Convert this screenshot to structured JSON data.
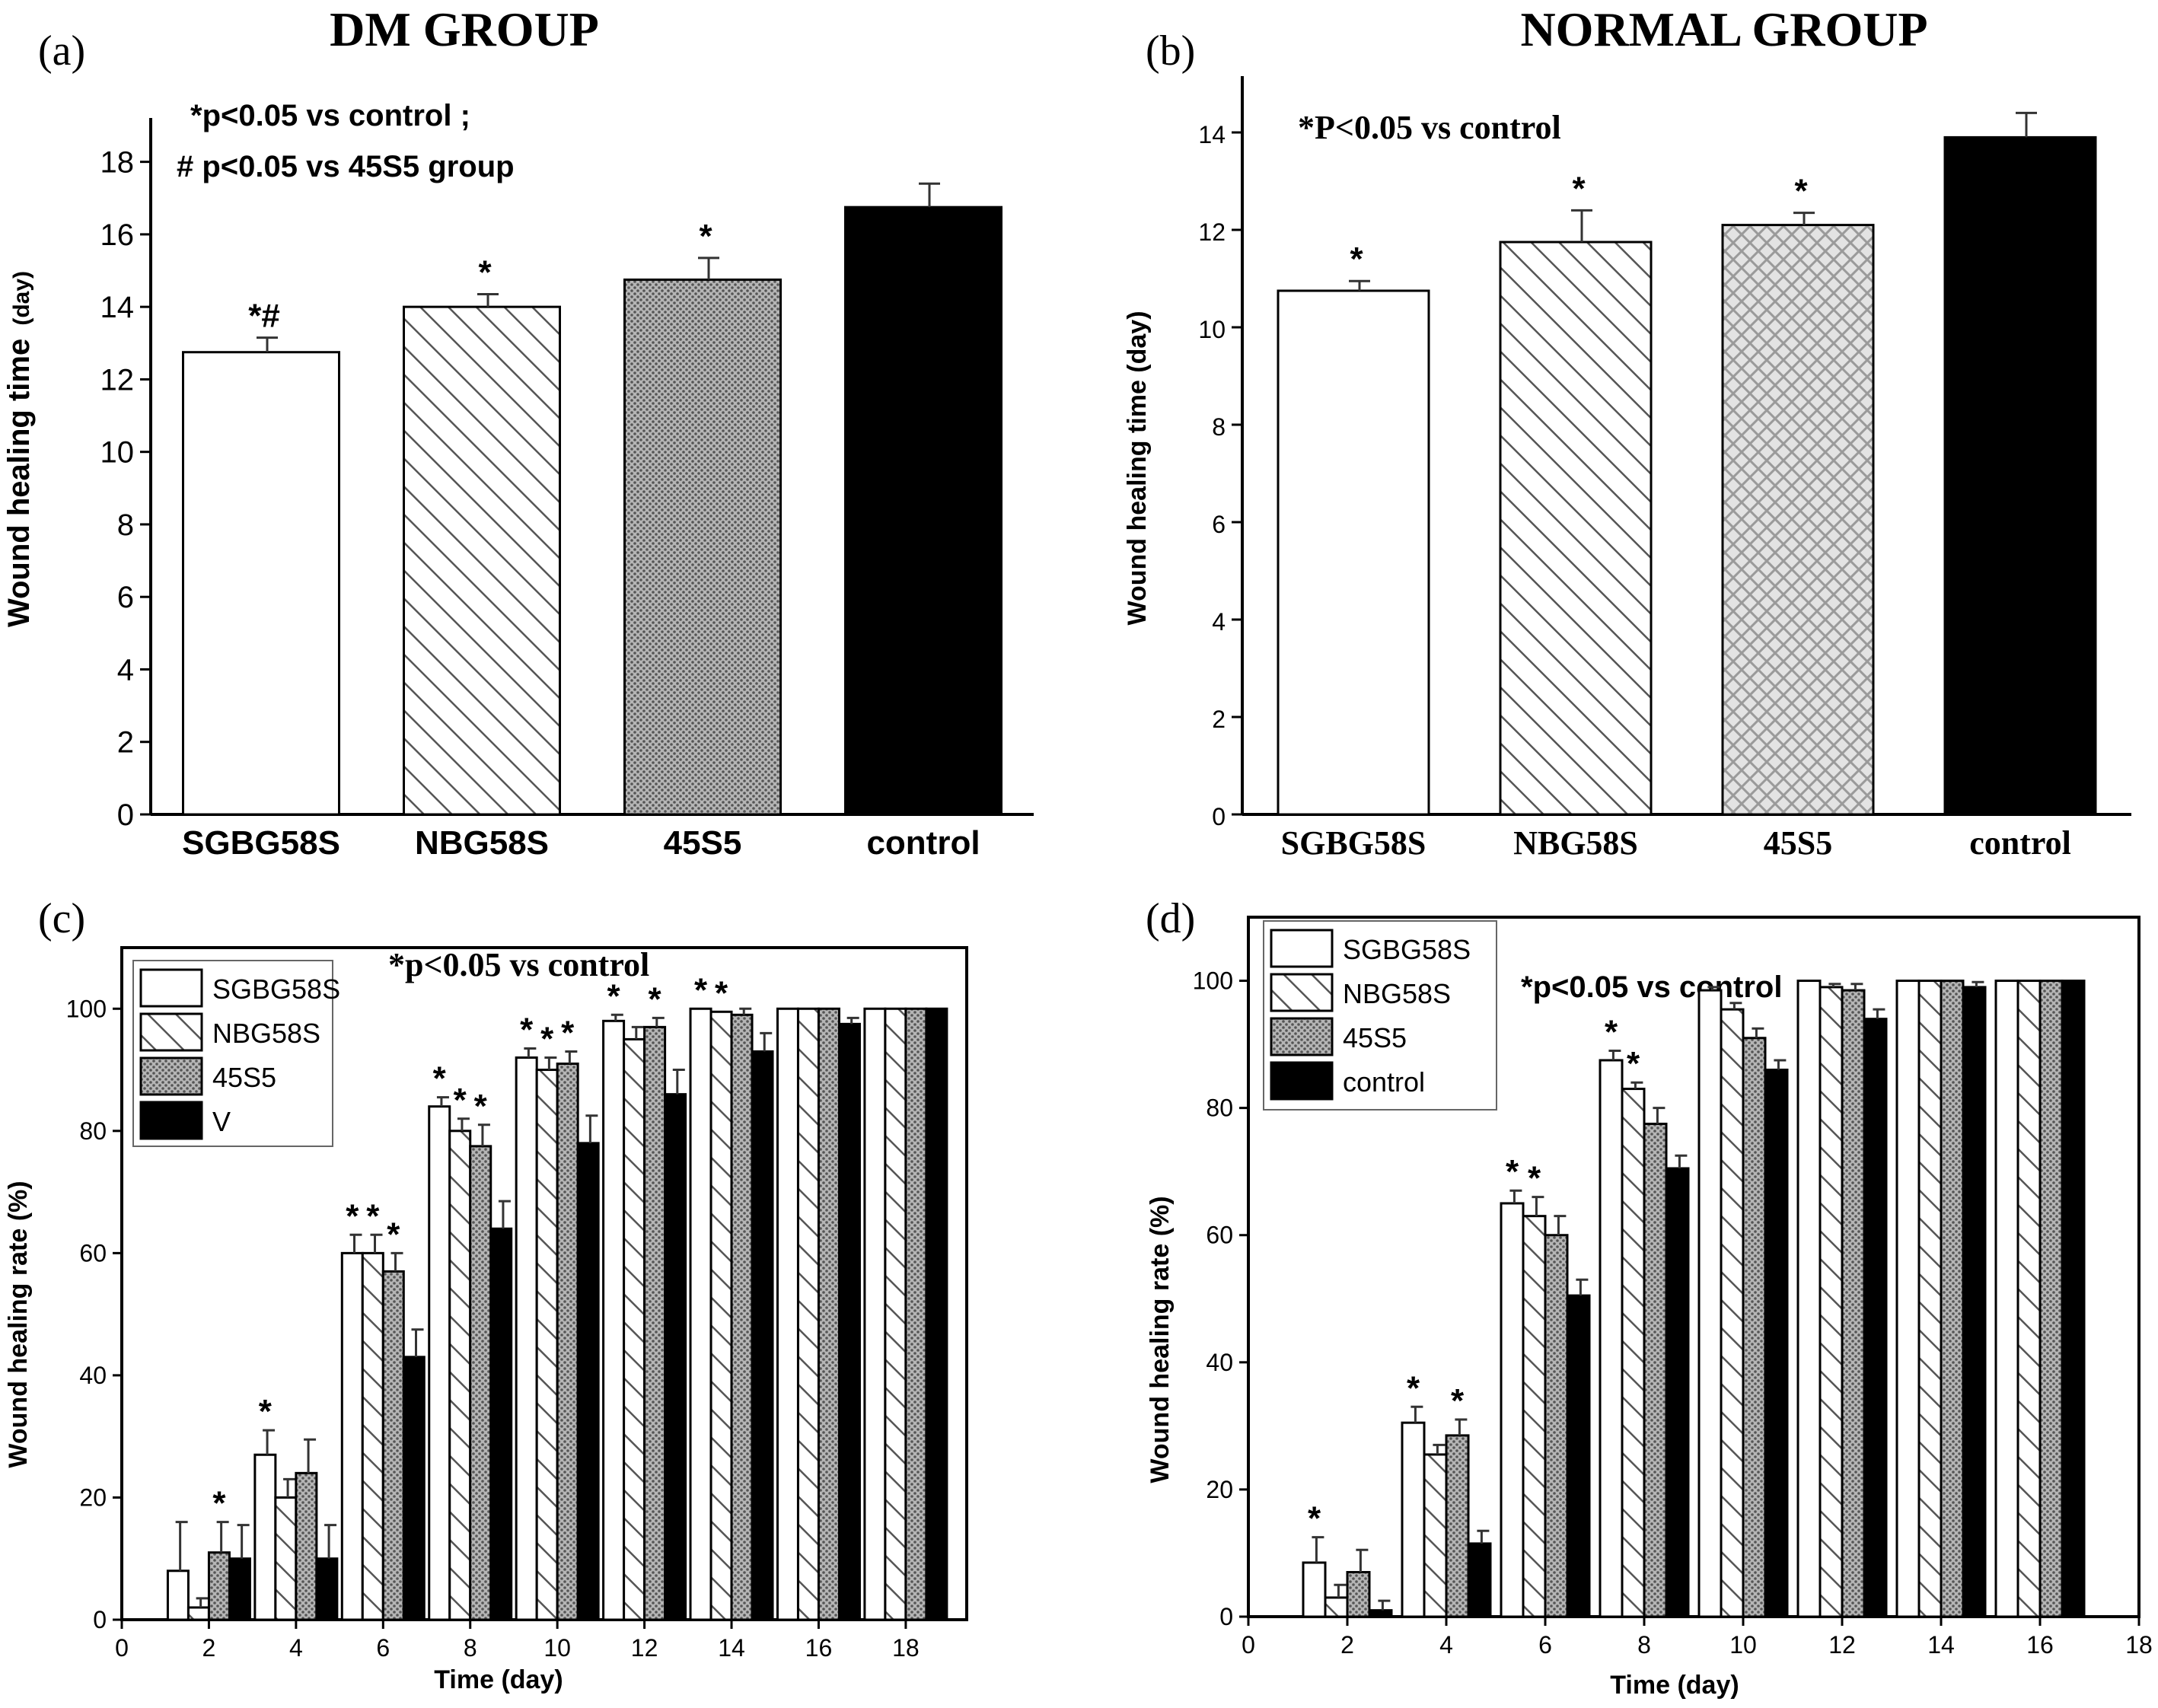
{
  "colors": {
    "control": "#000000",
    "sgbg": "#ffffff",
    "stroke": "#000000",
    "dots": "#8a8a8a"
  },
  "panels": [
    {
      "id": "a",
      "letter": "(a)",
      "title": "DM  GROUP",
      "annotation_lines": [
        "*p<0.05 vs  control ;",
        "# p<0.05 vs 45S5 group"
      ],
      "chart_data": {
        "type": "bar",
        "categories": [
          "SGBG58S",
          "NBG58S",
          "45S5",
          "control"
        ],
        "values": [
          12.75,
          14.0,
          14.75,
          16.75
        ],
        "errors": [
          0.4,
          0.35,
          0.6,
          0.65
        ],
        "markers": [
          "*#",
          "*",
          "*",
          ""
        ],
        "ylabel_main": "Wound healing time",
        "ylabel_unit": "(day)",
        "ylim": [
          0,
          19
        ],
        "yticks": [
          0,
          2,
          4,
          6,
          8,
          10,
          12,
          14,
          16,
          18
        ]
      }
    },
    {
      "id": "b",
      "letter": "(b)",
      "title": "NORMAL GROUP",
      "annotation_lines": [
        "*P<0.05 vs control"
      ],
      "chart_data": {
        "type": "bar",
        "categories": [
          "SGBG58S",
          "NBG58S",
          "45S5",
          "control"
        ],
        "values": [
          10.75,
          11.75,
          12.1,
          13.9
        ],
        "errors": [
          0.2,
          0.65,
          0.25,
          0.5
        ],
        "markers": [
          "*",
          "*",
          "*",
          ""
        ],
        "ylabel": "Wound healing time (day)",
        "ylim": [
          0,
          15
        ],
        "yticks": [
          0,
          2,
          4,
          6,
          8,
          10,
          12,
          14
        ]
      }
    },
    {
      "id": "c",
      "letter": "(c)",
      "annotation": "*p<0.05 vs control",
      "chart_data": {
        "type": "bar",
        "x": [
          2,
          4,
          6,
          8,
          10,
          12,
          14,
          16,
          18
        ],
        "series": [
          {
            "name": "SGBG58S",
            "values": [
              8,
              27,
              60,
              84,
              92,
              98,
              100,
              100,
              100
            ],
            "errors": [
              8,
              4,
              3,
              1.5,
              1.5,
              1,
              0,
              0,
              0
            ],
            "markers": [
              "",
              "*",
              "*",
              "*",
              "*",
              "*",
              "*",
              "",
              ""
            ]
          },
          {
            "name": "NBG58S",
            "values": [
              2,
              20,
              60,
              80,
              90,
              95,
              99.5,
              100,
              100
            ],
            "errors": [
              1.5,
              3,
              3,
              2,
              2,
              2,
              0,
              0,
              0
            ],
            "markers": [
              "",
              "",
              "*",
              "*",
              "*",
              "",
              "*",
              "",
              ""
            ]
          },
          {
            "name": "45S5",
            "values": [
              11,
              24,
              57,
              77.5,
              91,
              97,
              99,
              100,
              100
            ],
            "errors": [
              5,
              5.5,
              3,
              3.5,
              2,
              1.5,
              1,
              0,
              0
            ],
            "markers": [
              "*",
              "",
              "*",
              "*",
              "*",
              "*",
              "",
              "",
              ""
            ]
          },
          {
            "name": "V",
            "values": [
              10,
              10,
              43,
              64,
              78,
              86,
              93,
              97.5,
              100
            ],
            "errors": [
              5.5,
              5.5,
              4.5,
              4.5,
              4.5,
              4,
              3,
              1,
              0
            ],
            "markers": [
              "",
              "",
              "",
              "",
              "",
              "",
              "",
              "",
              ""
            ]
          }
        ],
        "xlabel": "Time (day)",
        "ylabel": "Wound healing rate (%)",
        "xlim": [
          0,
          19.4
        ],
        "ylim": [
          0,
          110
        ],
        "xticks": [
          0,
          2,
          4,
          6,
          8,
          10,
          12,
          14,
          16,
          18
        ],
        "yticks": [
          0,
          20,
          40,
          60,
          80,
          100
        ],
        "legend": "top-left"
      }
    },
    {
      "id": "d",
      "letter": "(d)",
      "annotation": "*p<0.05 vs control",
      "chart_data": {
        "type": "bar",
        "x": [
          2,
          4,
          6,
          8,
          10,
          12,
          14,
          16
        ],
        "series": [
          {
            "name": "SGBG58S",
            "values": [
              8.5,
              30.5,
              65,
              87.5,
              98.5,
              100,
              100,
              100
            ],
            "errors": [
              4,
              2.5,
              2,
              1.5,
              0.5,
              0,
              0,
              0
            ],
            "markers": [
              "*",
              "*",
              "*",
              "*",
              "",
              "",
              "",
              ""
            ]
          },
          {
            "name": "NBG58S",
            "values": [
              3,
              25.5,
              63,
              83,
              95.5,
              99,
              100,
              100
            ],
            "errors": [
              2,
              1.5,
              3,
              1,
              1,
              0.5,
              0,
              0
            ],
            "markers": [
              "",
              "",
              "*",
              "*",
              "",
              "",
              "",
              ""
            ]
          },
          {
            "name": "45S5",
            "values": [
              7,
              28.5,
              60,
              77.5,
              91,
              98.5,
              100,
              100
            ],
            "errors": [
              3.5,
              2.5,
              3,
              2.5,
              1.5,
              1,
              0,
              0
            ],
            "markers": [
              "",
              "*",
              "",
              "",
              "",
              "",
              "",
              ""
            ]
          },
          {
            "name": "control",
            "values": [
              1,
              11.5,
              50.5,
              70.5,
              86,
              94,
              99,
              100
            ],
            "errors": [
              1.5,
              2,
              2.5,
              2,
              1.5,
              1.5,
              0.8,
              0
            ],
            "markers": [
              "",
              "",
              "",
              "",
              "",
              "",
              "",
              ""
            ]
          }
        ],
        "xlabel": "Time (day)",
        "ylabel": "Wound healing rate (%)",
        "xlim": [
          0,
          18
        ],
        "ylim": [
          0,
          110
        ],
        "xticks": [
          0,
          2,
          4,
          6,
          8,
          10,
          12,
          14,
          16,
          18
        ],
        "yticks": [
          0,
          20,
          40,
          60,
          80,
          100
        ],
        "legend": "top-left"
      }
    }
  ]
}
